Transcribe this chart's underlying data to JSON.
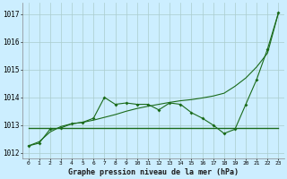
{
  "background_color": "#cceeff",
  "grid_color": "#aacccc",
  "line_color": "#1a6b1a",
  "title": "Graphe pression niveau de la mer (hPa)",
  "ylabel_ticks": [
    1012,
    1013,
    1014,
    1015,
    1016,
    1017
  ],
  "xlim": [
    -0.5,
    23.5
  ],
  "ylim": [
    1011.8,
    1017.4
  ],
  "series1_x": [
    0,
    1,
    2,
    3,
    4,
    5,
    6,
    7,
    8,
    9,
    10,
    11,
    12,
    13,
    14,
    15,
    16,
    17,
    18,
    19,
    20,
    21,
    22,
    23
  ],
  "series1_y": [
    1012.25,
    1012.35,
    1012.85,
    1012.9,
    1013.05,
    1013.1,
    1013.25,
    1014.0,
    1013.75,
    1013.8,
    1013.75,
    1013.75,
    1013.55,
    1013.8,
    1013.75,
    1013.45,
    1013.25,
    1013.0,
    1012.7,
    1012.85,
    1013.75,
    1014.65,
    1015.75,
    1017.05
  ],
  "series2_x": [
    0,
    1,
    2,
    3,
    4,
    5,
    6,
    7,
    8,
    9,
    10,
    11,
    12,
    13,
    14,
    15,
    16,
    17,
    18,
    19,
    20,
    21,
    22,
    23
  ],
  "series2_y": [
    1012.25,
    1012.4,
    1012.75,
    1012.95,
    1013.05,
    1013.1,
    1013.18,
    1013.28,
    1013.38,
    1013.5,
    1013.6,
    1013.68,
    1013.75,
    1013.82,
    1013.88,
    1013.92,
    1013.98,
    1014.05,
    1014.15,
    1014.4,
    1014.7,
    1015.1,
    1015.6,
    1017.05
  ],
  "series3_x": [
    0,
    23
  ],
  "series3_y": [
    1012.9,
    1012.9
  ],
  "xticks": [
    0,
    1,
    2,
    3,
    4,
    5,
    6,
    7,
    8,
    9,
    10,
    11,
    12,
    13,
    14,
    15,
    16,
    17,
    18,
    19,
    20,
    21,
    22,
    23
  ],
  "xtick_labels": [
    "0",
    "1",
    "2",
    "3",
    "4",
    "5",
    "6",
    "7",
    "8",
    "9",
    "10",
    "11",
    "12",
    "13",
    "14",
    "15",
    "16",
    "17",
    "18",
    "19",
    "20",
    "21",
    "22",
    "23"
  ],
  "figsize": [
    3.2,
    2.0
  ],
  "dpi": 100
}
